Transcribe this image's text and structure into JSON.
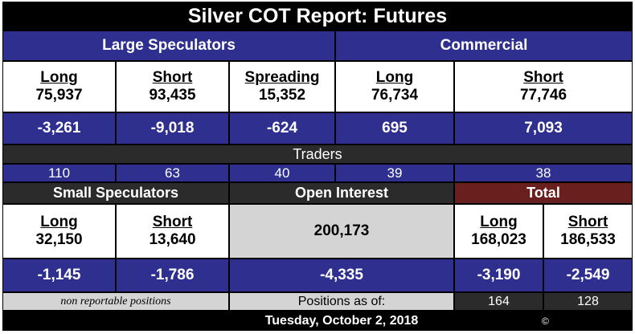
{
  "title": "Silver COT Report: Futures",
  "large_speculators": {
    "heading": "Large Speculators",
    "long": {
      "label": "Long",
      "value": "75,937",
      "change": "-3,261"
    },
    "short": {
      "label": "Short",
      "value": "93,435",
      "change": "-9,018"
    },
    "spreading": {
      "label": "Spreading",
      "value": "15,352",
      "change": "-624"
    }
  },
  "commercial": {
    "heading": "Commercial",
    "long": {
      "label": "Long",
      "value": "76,734",
      "change": "695"
    },
    "short": {
      "label": "Short",
      "value": "77,746",
      "change": "7,093"
    }
  },
  "traders": {
    "heading": "Traders",
    "large_long": "110",
    "large_short": "63",
    "spreading": "40",
    "commercial_long": "39",
    "commercial_short": "38"
  },
  "small_speculators": {
    "heading": "Small Speculators",
    "long": {
      "label": "Long",
      "value": "32,150",
      "change": "-1,145"
    },
    "short": {
      "label": "Short",
      "value": "13,640",
      "change": "-1,786"
    },
    "note": "non reportable positions"
  },
  "open_interest": {
    "heading": "Open Interest",
    "value": "200,173",
    "change": "-4,335"
  },
  "total": {
    "heading": "Total",
    "long": {
      "label": "Long",
      "value": "168,023",
      "change": "-3,190",
      "traders": "164"
    },
    "short": {
      "label": "Short",
      "value": "186,533",
      "change": "-2,549",
      "traders": "128"
    }
  },
  "positions_as_of": "Positions as of:",
  "date": "Tuesday, October 2, 2018",
  "copyright": "©",
  "colors": {
    "navy": "#2e2f8f",
    "dark_band": "#2b2b2b",
    "total_header": "#6a1f1f",
    "open_interest_bg": "#d4d4d4"
  }
}
